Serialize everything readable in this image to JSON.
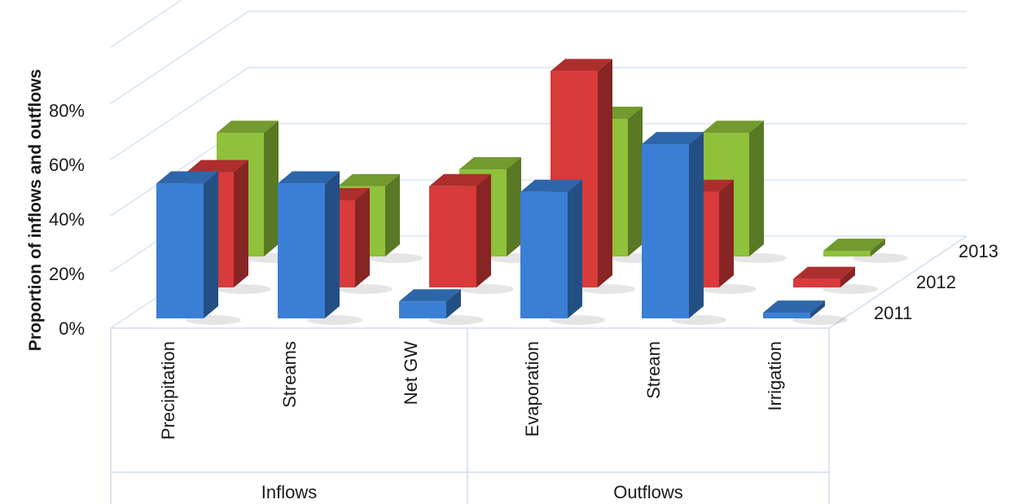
{
  "chart_data": {
    "type": "bar",
    "subtype": "3d-clustered-column",
    "ylabel": "Proportion of inflows and outflows",
    "yticks": [
      "0%",
      "20%",
      "40%",
      "60%",
      "80%"
    ],
    "ylim": [
      0,
      100
    ],
    "grid": true,
    "categories": [
      "Precipitation",
      "Streams",
      "Net GW",
      "Evaporation",
      "Stream",
      "Irrigation"
    ],
    "groups": [
      {
        "label": "Inflows",
        "categories": [
          "Precipitation",
          "Streams",
          "Net GW"
        ]
      },
      {
        "label": "Outflows",
        "categories": [
          "Evaporation",
          "Stream",
          "Irrigation"
        ]
      }
    ],
    "series": [
      {
        "name": "2011",
        "color": "#3a7fd5",
        "values": [
          48,
          48,
          6,
          45,
          62,
          2
        ]
      },
      {
        "name": "2012",
        "color": "#d93a3a",
        "values": [
          41,
          31,
          36,
          77,
          34,
          3
        ]
      },
      {
        "name": "2013",
        "color": "#8fc13a",
        "values": [
          44,
          25,
          31,
          49,
          44,
          2
        ]
      }
    ]
  }
}
